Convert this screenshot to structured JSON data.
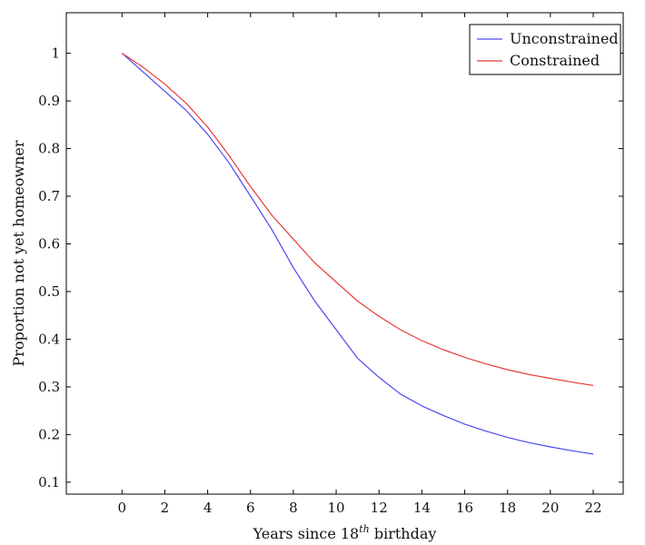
{
  "chart_data": {
    "type": "line",
    "title": "",
    "xlabel_main": "Years since 18",
    "xlabel_sup": "th",
    "xlabel_tail": " birthday",
    "ylabel": "Proportion not yet homeowner",
    "xlim": [
      -2.6,
      23.4
    ],
    "ylim": [
      0.075,
      1.085
    ],
    "xticks": [
      0,
      2,
      4,
      6,
      8,
      10,
      12,
      14,
      16,
      18,
      20,
      22
    ],
    "yticks": [
      0.1,
      0.2,
      0.3,
      0.4,
      0.5,
      0.6,
      0.7,
      0.8,
      0.9,
      1
    ],
    "grid": false,
    "legend_position": "top-right",
    "x": [
      0,
      1,
      2,
      3,
      4,
      5,
      6,
      7,
      8,
      9,
      10,
      11,
      12,
      13,
      14,
      15,
      16,
      17,
      18,
      19,
      20,
      21,
      22
    ],
    "series": [
      {
        "name": "Unconstrained",
        "color": "#4a4af0",
        "values": [
          1.0,
          0.96,
          0.92,
          0.88,
          0.83,
          0.77,
          0.7,
          0.63,
          0.55,
          0.48,
          0.42,
          0.36,
          0.32,
          0.285,
          0.26,
          0.24,
          0.222,
          0.207,
          0.194,
          0.183,
          0.174,
          0.166,
          0.159
        ]
      },
      {
        "name": "Constrained",
        "color": "#e83a3a",
        "values": [
          1.0,
          0.97,
          0.935,
          0.895,
          0.845,
          0.785,
          0.72,
          0.66,
          0.61,
          0.56,
          0.52,
          0.48,
          0.448,
          0.42,
          0.397,
          0.378,
          0.362,
          0.348,
          0.336,
          0.326,
          0.318,
          0.31,
          0.303
        ]
      }
    ]
  }
}
